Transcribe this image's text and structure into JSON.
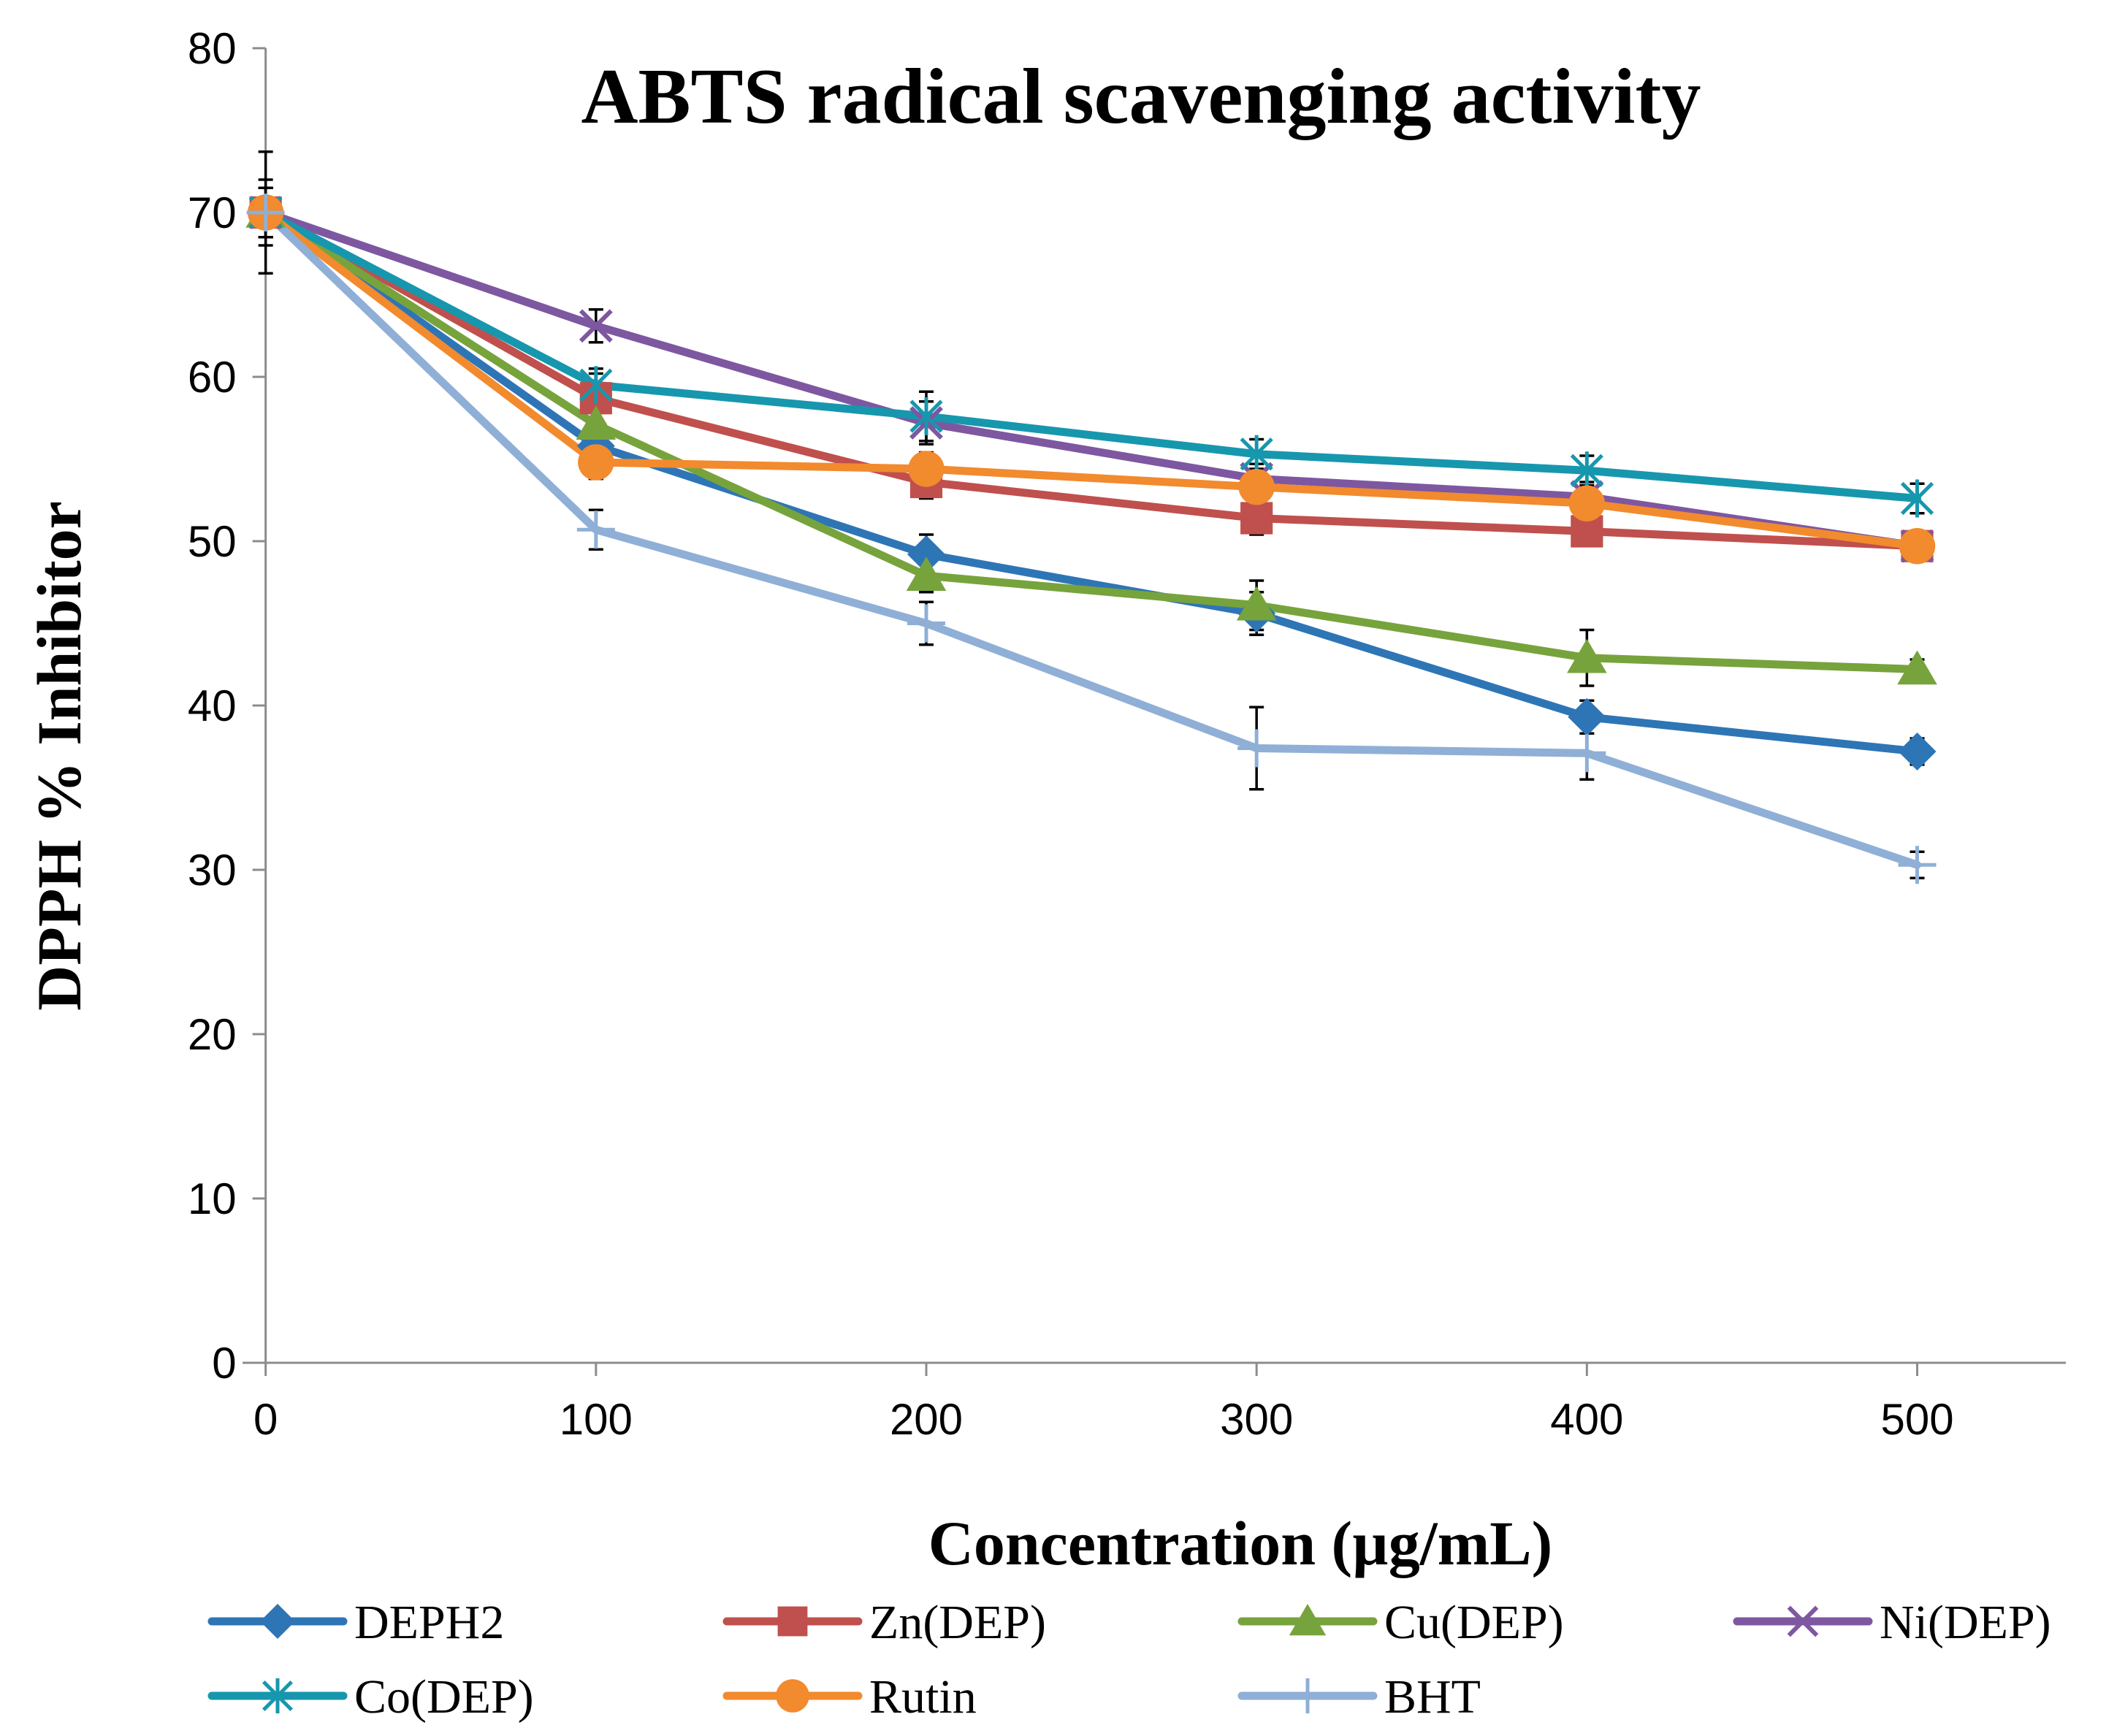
{
  "chart_data": {
    "type": "line",
    "title": "ABTS radical scavenging activity",
    "xlabel": "Concentration (µg/mL)",
    "ylabel": "DPPH % Inhibitor",
    "x": [
      0,
      100,
      200,
      300,
      400,
      500
    ],
    "x_ticks": [
      "0",
      "100",
      "200",
      "300",
      "400",
      "500"
    ],
    "y_ticks": [
      "0",
      "10",
      "20",
      "30",
      "40",
      "50",
      "60",
      "70",
      "80"
    ],
    "xlim": [
      -7,
      545
    ],
    "ylim": [
      0,
      80
    ],
    "grid": false,
    "legend_position": "bottom",
    "series": [
      {
        "name": "DEPH2",
        "color": "#2E75B6",
        "marker": "diamond",
        "values": [
          70,
          55.8,
          49.2,
          45.6,
          39.3,
          37.2
        ],
        "errors": [
          2.0,
          2.0,
          1.2,
          1.3,
          1.0,
          0.8
        ]
      },
      {
        "name": "Zn(DEP)",
        "color": "#C0504D",
        "marker": "square",
        "values": [
          70,
          58.7,
          53.6,
          51.4,
          50.6,
          49.7
        ],
        "errors": [
          1.5,
          1.5,
          1.0,
          1.0,
          0.9,
          0.9
        ]
      },
      {
        "name": "Cu(DEP)",
        "color": "#77A33C",
        "marker": "triangle",
        "values": [
          70,
          57.1,
          47.9,
          46.1,
          42.9,
          42.2
        ],
        "errors": [
          1.5,
          1.5,
          1.0,
          1.5,
          1.7,
          0.6
        ]
      },
      {
        "name": "Ni(DEP)",
        "color": "#7E57A1",
        "marker": "x",
        "values": [
          70,
          63.1,
          57.2,
          53.8,
          52.7,
          49.7
        ],
        "errors": [
          1.5,
          1.0,
          1.3,
          0.9,
          0.9,
          0.8
        ]
      },
      {
        "name": "Co(DEP)",
        "color": "#1797AD",
        "marker": "asterisk",
        "values": [
          70,
          59.5,
          57.6,
          55.3,
          54.3,
          52.6
        ],
        "errors": [
          1.5,
          1.0,
          1.5,
          0.9,
          0.9,
          0.9
        ]
      },
      {
        "name": "Rutin",
        "color": "#F28A2E",
        "marker": "circle",
        "values": [
          70,
          54.8,
          54.4,
          53.3,
          52.3,
          49.7
        ],
        "errors": [
          1.5,
          1.0,
          1.0,
          0.9,
          0.9,
          0.8
        ]
      },
      {
        "name": "BHT",
        "color": "#8FAFD6",
        "marker": "plus",
        "values": [
          70,
          50.7,
          45.0,
          37.4,
          37.1,
          30.3
        ],
        "errors": [
          3.7,
          1.2,
          1.3,
          2.5,
          1.6,
          0.8
        ]
      }
    ]
  }
}
